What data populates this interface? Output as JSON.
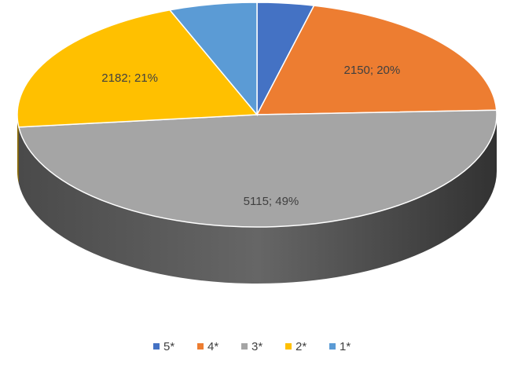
{
  "chart_data": {
    "type": "pie",
    "pie_3d": true,
    "categories": [
      "5*",
      "4*",
      "3*",
      "2*",
      "1*"
    ],
    "values": [
      400,
      2150,
      5115,
      2182,
      620
    ],
    "value_labels": [
      null,
      "2150; 20%",
      "5115; 49%",
      "2182; 21%",
      null
    ],
    "colors": [
      "#4472c4",
      "#ed7d31",
      "#a5a5a5",
      "#ffc000",
      "#5b9bd5"
    ],
    "legend": "bottom"
  }
}
